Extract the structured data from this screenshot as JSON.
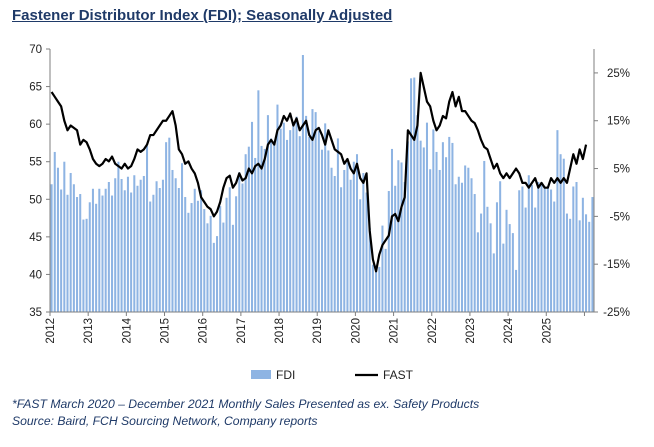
{
  "chart_data": {
    "type": "bar+line",
    "title": "Fastener Distributor Index (FDI); Seasonally Adjusted",
    "x_range": [
      "2012-01",
      "2025-06"
    ],
    "year_labels": [
      "2012",
      "2013",
      "2014",
      "2015",
      "2016",
      "2017",
      "2018",
      "2019",
      "2020",
      "2021",
      "2022",
      "2023",
      "2024",
      "2025"
    ],
    "left_axis": {
      "range": [
        35,
        70
      ],
      "ticks": [
        35,
        40,
        45,
        50,
        55,
        60,
        65,
        70
      ]
    },
    "right_axis": {
      "range": [
        -25,
        30
      ],
      "ticks": [
        "-25%",
        "-15%",
        "-5%",
        "5%",
        "15%",
        "25%"
      ],
      "tick_values": [
        -25,
        -15,
        -5,
        5,
        15,
        25
      ]
    },
    "grid": false,
    "legend_position": "bottom",
    "colors": {
      "bars": "#8eb4e3",
      "line": "#000000",
      "axis": "#7f7f7f",
      "title": "#1f3a68"
    },
    "series": [
      {
        "name": "FDI",
        "kind": "bar",
        "axis": "left",
        "values": [
          52.0,
          56.3,
          54.2,
          51.3,
          55.0,
          50.6,
          53.5,
          52.0,
          50.3,
          50.7,
          47.3,
          47.4,
          49.6,
          51.4,
          49.4,
          51.4,
          50.5,
          51.4,
          52.3,
          50.5,
          52.8,
          55.0,
          52.7,
          51.2,
          53.0,
          50.9,
          53.2,
          51.8,
          52.6,
          53.1,
          57.1,
          49.7,
          50.6,
          52.4,
          51.5,
          52.6,
          57.6,
          58.2,
          53.9,
          52.8,
          51.5,
          54.8,
          50.3,
          48.2,
          49.5,
          51.4,
          49.8,
          51.2,
          48.7,
          46.8,
          47.8,
          44.2,
          45.1,
          49.1,
          46.9,
          50.2,
          51.6,
          46.6,
          50.4,
          53.6,
          52.1,
          56.0,
          57.0,
          60.3,
          55.5,
          64.5,
          57.1,
          56.7,
          61.2,
          58.1,
          57.3,
          62.6,
          59.4,
          60.2,
          57.9,
          59.2,
          60.1,
          61.0,
          58.4,
          69.2,
          61.1,
          58.3,
          62.0,
          61.6,
          59.1,
          56.6,
          60.1,
          56.5,
          54.2,
          53.1,
          58.1,
          51.6,
          53.9,
          54.9,
          52.6,
          55.0,
          56.0,
          50.0,
          53.5,
          50.9,
          46.2,
          41.3,
          41.2,
          41.0,
          46.5,
          43.4,
          51.1,
          56.7,
          51.8,
          55.2,
          54.9,
          52.3,
          57.7,
          66.1,
          66.2,
          61.2,
          57.8,
          56.9,
          60.2,
          54.0,
          59.3,
          56.3,
          53.9,
          57.6,
          55.6,
          58.3,
          57.5,
          52.0,
          53.0,
          52.2,
          54.5,
          54.2,
          52.8,
          50.7,
          45.6,
          48.1,
          55.1,
          49.0,
          46.8,
          42.8,
          49.6,
          52.4,
          44.1,
          48.6,
          46.7,
          45.5,
          40.6,
          51.2,
          51.7,
          48.9,
          53.2,
          51.9,
          48.9,
          52.3,
          51.9,
          51.5,
          51.7,
          51.3,
          49.7,
          59.2,
          56.0,
          55.4,
          48.1,
          47.4,
          51.7,
          52.3,
          47.2,
          50.2,
          48.0,
          47.0,
          50.3
        ]
      },
      {
        "name": "FAST",
        "kind": "line",
        "axis": "right",
        "values": [
          21.0,
          20.0,
          19.0,
          18.0,
          15.0,
          13.0,
          14.0,
          13.5,
          13.0,
          10.0,
          11.0,
          10.5,
          9.0,
          7.0,
          6.0,
          5.5,
          6.0,
          7.0,
          6.5,
          7.5,
          6.0,
          5.5,
          5.0,
          6.0,
          5.0,
          5.5,
          7.0,
          9.0,
          8.5,
          9.0,
          10.0,
          12.0,
          12.0,
          13.0,
          14.0,
          15.0,
          15.0,
          16.0,
          17.0,
          14.0,
          9.0,
          8.0,
          6.0,
          6.5,
          5.0,
          4.0,
          2.0,
          -1.0,
          -2.0,
          -3.0,
          -3.5,
          -5.0,
          -4.0,
          -2.0,
          1.0,
          3.0,
          3.5,
          1.0,
          2.0,
          4.0,
          2.5,
          3.0,
          5.0,
          4.0,
          5.5,
          6.0,
          5.0,
          7.0,
          10.0,
          11.0,
          10.0,
          13.0,
          14.0,
          16.0,
          15.0,
          16.5,
          14.0,
          15.5,
          13.0,
          14.0,
          15.0,
          12.0,
          11.0,
          13.0,
          13.5,
          12.0,
          10.0,
          13.0,
          11.0,
          9.0,
          8.5,
          8.0,
          6.0,
          7.0,
          5.0,
          4.0,
          6.0,
          3.0,
          2.0,
          4.0,
          -8.0,
          -14.0,
          -16.5,
          -13.0,
          -11.0,
          -10.0,
          -9.0,
          -5.0,
          -4.5,
          -6.0,
          -3.0,
          -1.0,
          13.0,
          12.0,
          11.0,
          14.0,
          25.0,
          22.0,
          19.0,
          18.0,
          15.0,
          13.0,
          14.0,
          16.0,
          15.5,
          19.0,
          21.0,
          18.0,
          20.0,
          17.0,
          17.0,
          16.0,
          15.0,
          14.5,
          13.0,
          11.0,
          9.5,
          9.0,
          7.0,
          5.0,
          6.0,
          4.0,
          3.0,
          4.0,
          3.0,
          4.0,
          5.0,
          4.0,
          2.0,
          2.0,
          1.0,
          2.0,
          3.0,
          1.0,
          2.0,
          1.0,
          1.0,
          3.0,
          2.0,
          3.0,
          2.0,
          3.0,
          2.0,
          5.0,
          8.0,
          6.0,
          9.0,
          7.0,
          10.0
        ]
      }
    ]
  },
  "footnotes": {
    "line1": "*FAST March 2020 – December 2021 Monthly Sales Presented as ex. Safety Products",
    "line2": "Source: Baird, FCH Sourcing Network, Company reports"
  }
}
